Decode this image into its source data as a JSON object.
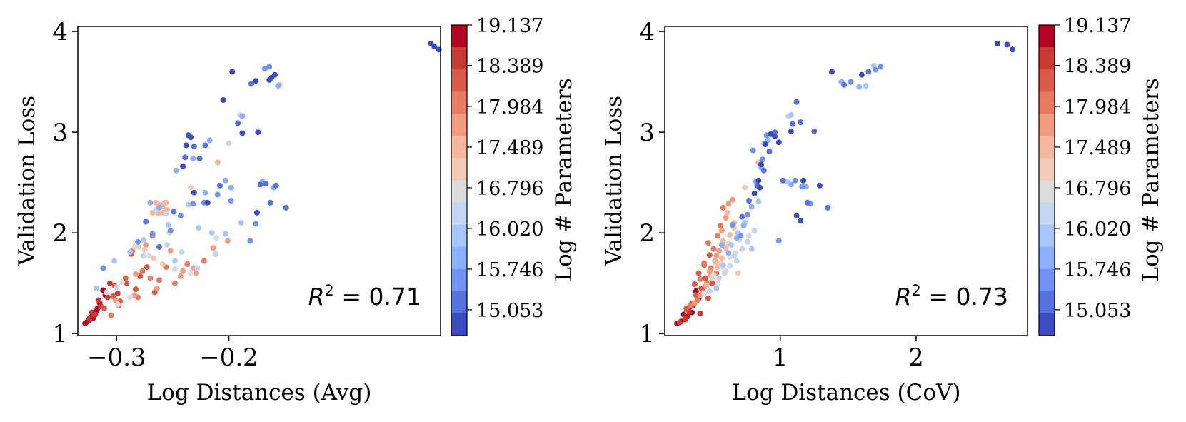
{
  "chart_data": [
    {
      "type": "scatter",
      "xlabel": "Log Distances (Avg)",
      "ylabel": "Validation Loss",
      "xlim": [
        -0.3345,
        -0.0115
      ],
      "ylim": [
        0.98,
        4.05
      ],
      "xticks": [
        -0.3,
        -0.2
      ],
      "xtick_labels": [
        "−0.3",
        "−0.2"
      ],
      "yticks": [
        1,
        2,
        3,
        4
      ],
      "ytick_labels": [
        "1",
        "2",
        "3",
        "4"
      ],
      "annotation": {
        "prefix": "R",
        "sup": "2",
        "text": " = 0.71"
      },
      "colorbar": {
        "label": "Log # Parameters",
        "tick_labels": [
          "19.137",
          "18.389",
          "17.984",
          "17.489",
          "16.796",
          "16.020",
          "15.746",
          "15.053"
        ],
        "colors": [
          "#b40426",
          "#c93a32",
          "#da5a49",
          "#e77b62",
          "#f19d80",
          "#f5b89e",
          "#f2cbb7",
          "#dddcdc",
          "#c5d6f2",
          "#aac7fd",
          "#8db0fe",
          "#6f92f3",
          "#5572df",
          "#3b4cc0"
        ]
      },
      "series": [
        {
          "color": "#b40426",
          "x": [
            -0.328,
            -0.325,
            -0.322,
            -0.318,
            -0.315,
            -0.312,
            -0.326,
            -0.321,
            -0.317,
            -0.31
          ],
          "y": [
            1.1,
            1.13,
            1.17,
            1.22,
            1.3,
            1.43,
            1.12,
            1.15,
            1.25,
            1.38
          ]
        },
        {
          "color": "#c93a32",
          "x": [
            -0.324,
            -0.319,
            -0.314,
            -0.308,
            -0.306,
            -0.299,
            -0.316,
            -0.322
          ],
          "y": [
            1.15,
            1.19,
            1.27,
            1.36,
            1.5,
            1.4,
            1.33,
            1.21
          ]
        },
        {
          "color": "#da5a49",
          "x": [
            -0.311,
            -0.303,
            -0.297,
            -0.291,
            -0.287,
            -0.283,
            -0.279,
            -0.273,
            -0.266,
            -0.302,
            -0.292
          ],
          "y": [
            1.25,
            1.37,
            1.32,
            1.5,
            1.79,
            1.44,
            1.57,
            1.66,
            1.41,
            1.48,
            1.55
          ]
        },
        {
          "color": "#e77b62",
          "x": [
            -0.305,
            -0.298,
            -0.286,
            -0.277,
            -0.27,
            -0.268,
            -0.262,
            -0.248,
            -0.237,
            -0.222,
            -0.212,
            -0.281,
            -0.256
          ],
          "y": [
            1.18,
            1.28,
            1.82,
            1.62,
            1.55,
            1.97,
            1.53,
            1.5,
            1.69,
            1.72,
            1.79,
            1.36,
            1.66
          ]
        },
        {
          "color": "#f19d80",
          "x": [
            -0.301,
            -0.284,
            -0.274,
            -0.264,
            -0.252,
            -0.243,
            -0.231,
            -0.229,
            -0.214,
            -0.201,
            -0.283,
            -0.241
          ],
          "y": [
            1.33,
            1.38,
            1.88,
            1.45,
            1.82,
            1.57,
            1.65,
            1.6,
            1.85,
            1.92,
            1.59,
            1.62
          ]
        },
        {
          "color": "#f5b89e",
          "x": [
            -0.268,
            -0.265,
            -0.263,
            -0.261,
            -0.259,
            -0.257,
            -0.255,
            -0.263,
            -0.259,
            -0.256,
            -0.21
          ],
          "y": [
            2.2,
            2.3,
            2.25,
            2.28,
            2.2,
            2.3,
            2.23,
            2.19,
            2.26,
            2.3,
            2.7
          ]
        },
        {
          "color": "#f2cbb7",
          "x": [
            -0.28,
            -0.275,
            -0.253,
            -0.234,
            -0.267,
            -0.259
          ],
          "y": [
            1.86,
            1.83,
            2.0,
            2.45,
            1.75,
            1.69
          ]
        },
        {
          "color": "#dddcdc",
          "x": [
            -0.309,
            -0.295,
            -0.284,
            -0.271,
            -0.248,
            -0.234,
            -0.211,
            -0.299,
            -0.288
          ],
          "y": [
            1.41,
            1.51,
            1.86,
            1.77,
            1.64,
            1.6,
            1.95,
            1.29,
            1.36
          ]
        },
        {
          "color": "#c5d6f2",
          "x": [
            -0.3,
            -0.276,
            -0.265,
            -0.256,
            -0.242,
            -0.228,
            -0.2,
            -0.19,
            -0.255,
            -0.212
          ],
          "y": [
            1.46,
            1.77,
            2.23,
            2.19,
            1.81,
            1.65,
            2.89,
            3.17,
            1.88,
            1.79
          ]
        },
        {
          "color": "#aac7fd",
          "x": [
            -0.318,
            -0.302,
            -0.288,
            -0.276,
            -0.254,
            -0.248,
            -0.236,
            -0.227,
            -0.215,
            -0.203,
            -0.189,
            -0.155
          ],
          "y": [
            1.45,
            1.72,
            1.81,
            1.93,
            2.08,
            1.72,
            2.28,
            2.05,
            2.0,
            1.99,
            2.1,
            3.47
          ]
        },
        {
          "color": "#8db0fe",
          "x": [
            -0.27,
            -0.262,
            -0.247,
            -0.232,
            -0.221,
            -0.217,
            -0.203,
            -0.198,
            -0.188,
            -0.17,
            -0.16,
            -0.156
          ],
          "y": [
            2.3,
            2.25,
            2.62,
            2.74,
            2.4,
            2.92,
            2.52,
            2.45,
            3.16,
            2.51,
            2.45,
            3.46
          ]
        },
        {
          "color": "#6f92f3",
          "x": [
            -0.312,
            -0.281,
            -0.268,
            -0.252,
            -0.243,
            -0.232,
            -0.222,
            -0.21,
            -0.198,
            -0.181,
            -0.176,
            -0.168,
            -0.164
          ],
          "y": [
            1.65,
            1.91,
            1.99,
            2.02,
            2.17,
            2.29,
            2.3,
            2.38,
            2.32,
            1.92,
            2.09,
            3.63,
            3.65
          ]
        },
        {
          "color": "#5572df",
          "x": [
            -0.274,
            -0.262,
            -0.249,
            -0.239,
            -0.231,
            -0.226,
            -0.221,
            -0.208,
            -0.192,
            -0.18,
            -0.172,
            -0.167,
            -0.163,
            -0.158,
            -0.149
          ],
          "y": [
            2.11,
            1.86,
            2.21,
            2.75,
            2.86,
            2.74,
            2.87,
            2.47,
            3.09,
            3.48,
            2.48,
            2.49,
            2.3,
            2.47,
            2.25
          ]
        },
        {
          "color": "#3b4cc0",
          "x": [
            -0.241,
            -0.238,
            -0.236,
            -0.234,
            -0.231,
            -0.219,
            -0.205,
            -0.197,
            -0.188,
            -0.176,
            -0.164,
            -0.174,
            -0.162,
            -0.175,
            -0.159,
            -0.02,
            -0.017,
            -0.013
          ],
          "y": [
            2.66,
            2.87,
            2.97,
            2.95,
            2.4,
            2.3,
            3.32,
            3.6,
            2.99,
            3.51,
            3.52,
            3.0,
            3.54,
            2.2,
            3.57,
            3.88,
            3.85,
            3.82
          ]
        }
      ]
    },
    {
      "type": "scatter",
      "xlabel": "Log Distances (CoV)",
      "ylabel": "Validation Loss",
      "xlim": [
        0.15,
        2.82
      ],
      "ylim": [
        0.98,
        4.05
      ],
      "xticks": [
        1,
        2
      ],
      "xtick_labels": [
        "1",
        "2"
      ],
      "yticks": [
        1,
        2,
        3,
        4
      ],
      "ytick_labels": [
        "1",
        "2",
        "3",
        "4"
      ],
      "annotation": {
        "prefix": "R",
        "sup": "2",
        "text": " = 0.73"
      },
      "colorbar": {
        "label": "Log # Parameters",
        "tick_labels": [
          "19.137",
          "18.389",
          "17.984",
          "17.489",
          "16.796",
          "16.020",
          "15.746",
          "15.053"
        ],
        "colors": [
          "#b40426",
          "#c93a32",
          "#da5a49",
          "#e77b62",
          "#f19d80",
          "#f5b89e",
          "#f2cbb7",
          "#dddcdc",
          "#c5d6f2",
          "#aac7fd",
          "#8db0fe",
          "#6f92f3",
          "#5572df",
          "#3b4cc0"
        ]
      },
      "series": [
        {
          "color": "#b40426",
          "x": [
            0.24,
            0.27,
            0.3,
            0.32,
            0.35,
            0.36,
            0.38,
            0.33,
            0.29,
            0.4
          ],
          "y": [
            1.1,
            1.12,
            1.14,
            1.17,
            1.21,
            1.3,
            1.42,
            1.26,
            1.19,
            1.35
          ]
        },
        {
          "color": "#c93a32",
          "x": [
            0.26,
            0.3,
            0.33,
            0.36,
            0.39,
            0.43,
            0.31,
            0.41
          ],
          "y": [
            1.11,
            1.15,
            1.22,
            1.28,
            1.37,
            1.45,
            1.25,
            1.2
          ]
        },
        {
          "color": "#da5a49",
          "x": [
            0.31,
            0.35,
            0.38,
            0.42,
            0.45,
            0.48,
            0.4,
            0.37,
            0.44,
            0.47,
            0.5
          ],
          "y": [
            1.24,
            1.3,
            1.38,
            1.45,
            1.55,
            1.78,
            1.6,
            1.49,
            1.68,
            1.35,
            1.5
          ]
        },
        {
          "color": "#e77b62",
          "x": [
            0.34,
            0.39,
            0.43,
            0.46,
            0.49,
            0.51,
            0.54,
            0.56,
            0.58,
            0.44,
            0.41,
            0.53,
            0.47
          ],
          "y": [
            1.28,
            1.33,
            1.41,
            1.5,
            1.65,
            1.84,
            1.97,
            2.07,
            2.25,
            1.7,
            1.54,
            1.6,
            1.9
          ]
        },
        {
          "color": "#f19d80",
          "x": [
            0.37,
            0.41,
            0.45,
            0.49,
            0.52,
            0.55,
            0.57,
            0.6,
            0.62,
            0.65,
            0.48,
            0.53
          ],
          "y": [
            1.3,
            1.38,
            1.47,
            1.58,
            1.72,
            1.82,
            2.02,
            2.15,
            2.29,
            2.33,
            1.62,
            1.77
          ]
        },
        {
          "color": "#f5b89e",
          "x": [
            0.46,
            0.5,
            0.54,
            0.57,
            0.6,
            0.63,
            0.66,
            0.58,
            0.52,
            0.61,
            0.84
          ],
          "y": [
            1.48,
            1.57,
            1.66,
            1.75,
            1.85,
            1.98,
            2.1,
            1.92,
            1.71,
            2.2,
            2.7
          ]
        },
        {
          "color": "#f2cbb7",
          "x": [
            0.5,
            0.56,
            0.62,
            0.66,
            0.74,
            0.69
          ],
          "y": [
            1.55,
            1.7,
            1.89,
            2.05,
            2.45,
            1.6
          ]
        },
        {
          "color": "#dddcdc",
          "x": [
            0.44,
            0.51,
            0.57,
            0.63,
            0.7,
            0.77,
            0.54,
            0.6,
            0.67
          ],
          "y": [
            1.4,
            1.58,
            1.66,
            1.76,
            1.93,
            1.97,
            1.5,
            1.62,
            1.8
          ]
        },
        {
          "color": "#c5d6f2",
          "x": [
            0.48,
            0.55,
            0.63,
            0.68,
            0.72,
            0.76,
            0.81,
            1.06,
            0.59,
            0.66
          ],
          "y": [
            1.42,
            1.55,
            1.67,
            1.72,
            1.84,
            1.91,
            2.02,
            3.16,
            1.6,
            1.77
          ]
        },
        {
          "color": "#aac7fd",
          "x": [
            0.53,
            0.58,
            0.64,
            0.69,
            0.74,
            0.79,
            0.84,
            0.88,
            1.05,
            1.08,
            1.63,
            1.69
          ],
          "y": [
            1.45,
            1.68,
            1.88,
            2.0,
            2.1,
            1.84,
            2.31,
            2.89,
            2.51,
            3.17,
            3.46,
            3.66
          ]
        },
        {
          "color": "#8db0fe",
          "x": [
            0.57,
            0.62,
            0.68,
            0.73,
            0.79,
            0.82,
            0.86,
            0.91,
            1.08,
            1.19,
            1.45,
            1.58
          ],
          "y": [
            1.88,
            1.8,
            1.95,
            2.07,
            2.26,
            2.51,
            2.65,
            2.92,
            2.48,
            2.46,
            3.5,
            3.45
          ]
        },
        {
          "color": "#6f92f3",
          "x": [
            0.65,
            0.71,
            0.76,
            0.8,
            0.87,
            0.9,
            0.99,
            1.11,
            1.16,
            1.22,
            1.52,
            1.7,
            1.74
          ],
          "y": [
            2.08,
            1.97,
            2.18,
            2.82,
            2.73,
            2.97,
            1.92,
            2.52,
            2.46,
            2.29,
            3.5,
            3.62,
            3.65
          ]
        },
        {
          "color": "#5572df",
          "x": [
            0.72,
            0.77,
            0.83,
            0.88,
            0.92,
            0.96,
            1.02,
            1.09,
            1.15,
            1.2,
            1.25,
            1.12,
            1.35,
            1.65,
            1.47
          ],
          "y": [
            2.16,
            2.32,
            2.47,
            2.62,
            2.81,
            3.0,
            2.52,
            3.08,
            3.1,
            2.3,
            3.01,
            3.3,
            2.25,
            3.6,
            3.47
          ]
        },
        {
          "color": "#3b4cc0",
          "x": [
            0.81,
            0.84,
            0.86,
            0.89,
            0.93,
            0.96,
            1.08,
            1.12,
            1.15,
            1.17,
            1.29,
            1.38,
            1.6,
            0.85,
            0.99,
            2.6,
            2.67,
            2.71
          ],
          "y": [
            2.39,
            2.52,
            2.68,
            2.88,
            2.98,
            2.96,
            3.01,
            2.17,
            2.12,
            2.52,
            2.47,
            3.6,
            3.57,
            2.45,
            2.9,
            3.88,
            3.87,
            3.82
          ]
        }
      ]
    }
  ]
}
